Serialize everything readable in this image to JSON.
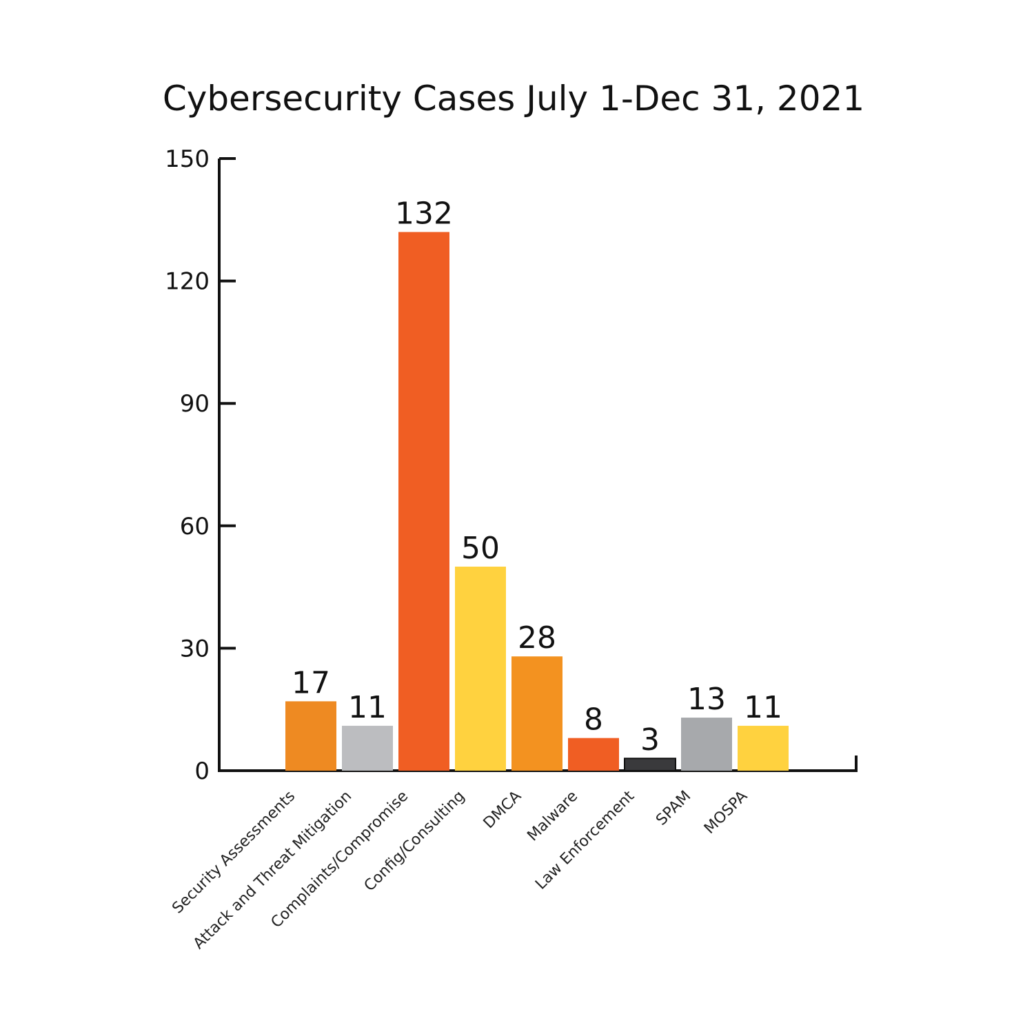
{
  "chart_data": {
    "type": "bar",
    "title": "Cybersecurity Cases  July 1-Dec 31, 2021",
    "xlabel": "",
    "ylabel": "",
    "ylim": [
      0,
      150
    ],
    "yticks": [
      0,
      30,
      60,
      90,
      120,
      150
    ],
    "grid": false,
    "legend": "none",
    "categories": [
      "Security Assessments",
      "Attack and Threat Mitigation",
      "Complaints/Compromise",
      "Config/Consulting",
      "DMCA",
      "Malware",
      "Law Enforcement",
      "SPAM",
      "MOSPA"
    ],
    "values": [
      17,
      11,
      132,
      50,
      28,
      8,
      3,
      13,
      11
    ],
    "data_labels": [
      "17",
      "11",
      "132",
      "50",
      "28",
      "8",
      "3",
      "13",
      "11"
    ],
    "colors": [
      "#EE8A22",
      "#BCBDC0",
      "#F05E23",
      "#FFD23F",
      "#F39220",
      "#F05E23",
      "#3A3A3C",
      "#A7A9AC",
      "#FFD23F"
    ]
  }
}
